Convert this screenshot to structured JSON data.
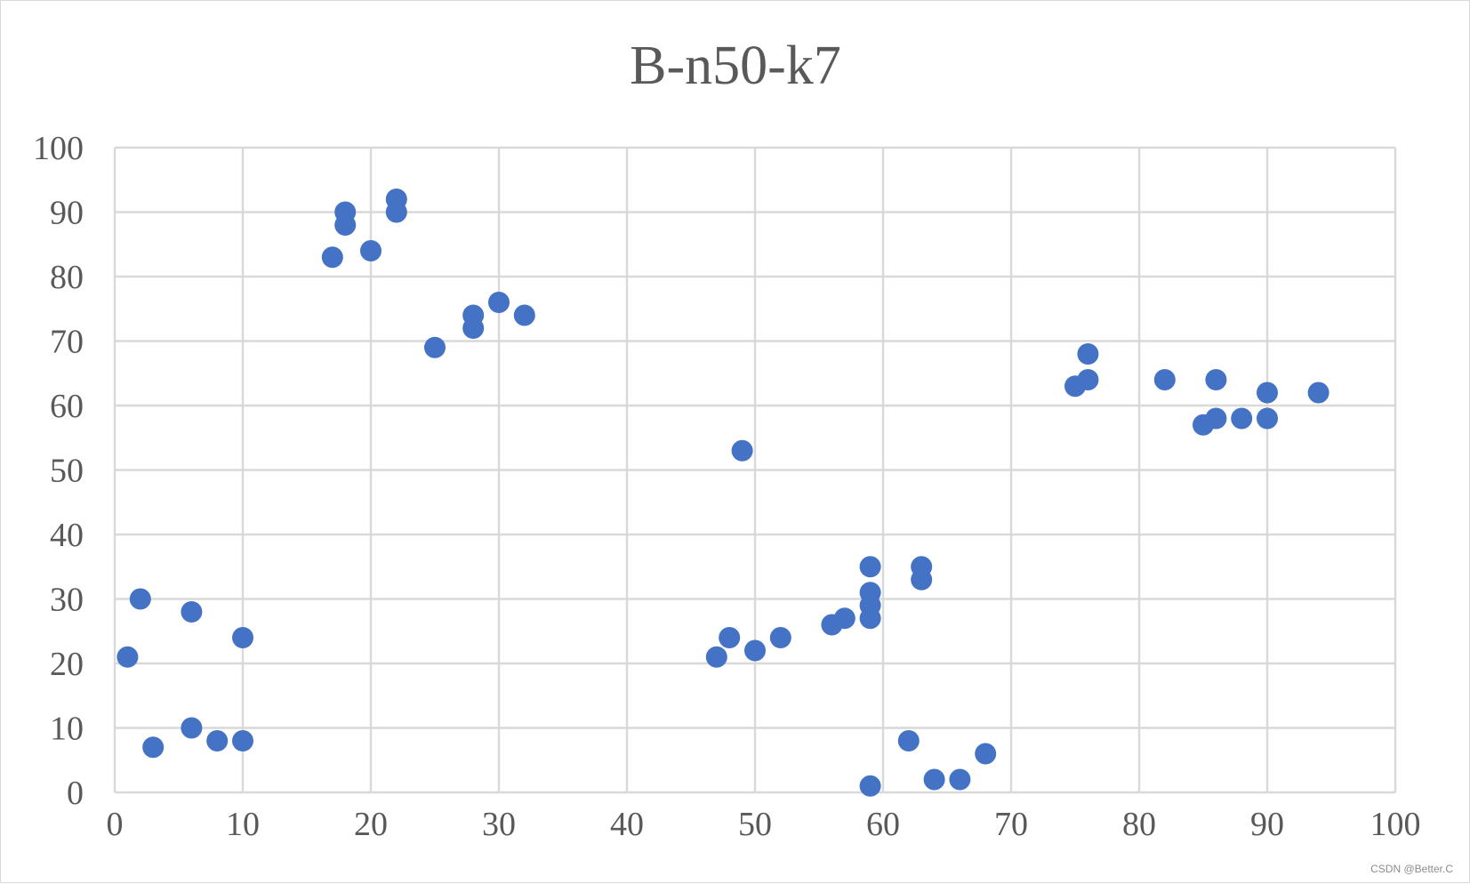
{
  "chart_data": {
    "type": "scatter",
    "title": "B-n50-k7",
    "xlabel": "",
    "ylabel": "",
    "xlim": [
      0,
      100
    ],
    "ylim": [
      0,
      100
    ],
    "x_ticks": [
      0,
      10,
      20,
      30,
      40,
      50,
      60,
      70,
      80,
      90,
      100
    ],
    "y_ticks": [
      0,
      10,
      20,
      30,
      40,
      50,
      60,
      70,
      80,
      90,
      100
    ],
    "grid": true,
    "legend": "none",
    "marker_color": "#4472c4",
    "series": [
      {
        "points": [
          [
            1,
            21
          ],
          [
            2,
            30
          ],
          [
            3,
            7
          ],
          [
            6,
            28
          ],
          [
            6,
            10
          ],
          [
            8,
            8
          ],
          [
            10,
            24
          ],
          [
            10,
            8
          ],
          [
            17,
            83
          ],
          [
            18,
            90
          ],
          [
            18,
            88
          ],
          [
            20,
            84
          ],
          [
            22,
            92
          ],
          [
            22,
            90
          ],
          [
            25,
            69
          ],
          [
            28,
            74
          ],
          [
            28,
            72
          ],
          [
            30,
            76
          ],
          [
            32,
            74
          ],
          [
            47,
            21
          ],
          [
            48,
            24
          ],
          [
            49,
            53
          ],
          [
            50,
            22
          ],
          [
            52,
            24
          ],
          [
            56,
            26
          ],
          [
            57,
            27
          ],
          [
            59,
            35
          ],
          [
            59,
            31
          ],
          [
            59,
            29
          ],
          [
            59,
            27
          ],
          [
            59,
            1
          ],
          [
            62,
            8
          ],
          [
            63,
            35
          ],
          [
            63,
            33
          ],
          [
            64,
            2
          ],
          [
            66,
            2
          ],
          [
            68,
            6
          ],
          [
            75,
            63
          ],
          [
            76,
            68
          ],
          [
            76,
            64
          ],
          [
            82,
            64
          ],
          [
            85,
            57
          ],
          [
            86,
            64
          ],
          [
            86,
            58
          ],
          [
            88,
            58
          ],
          [
            90,
            62
          ],
          [
            90,
            58
          ],
          [
            94,
            62
          ]
        ]
      }
    ]
  },
  "watermark": "CSDN @Better.C"
}
